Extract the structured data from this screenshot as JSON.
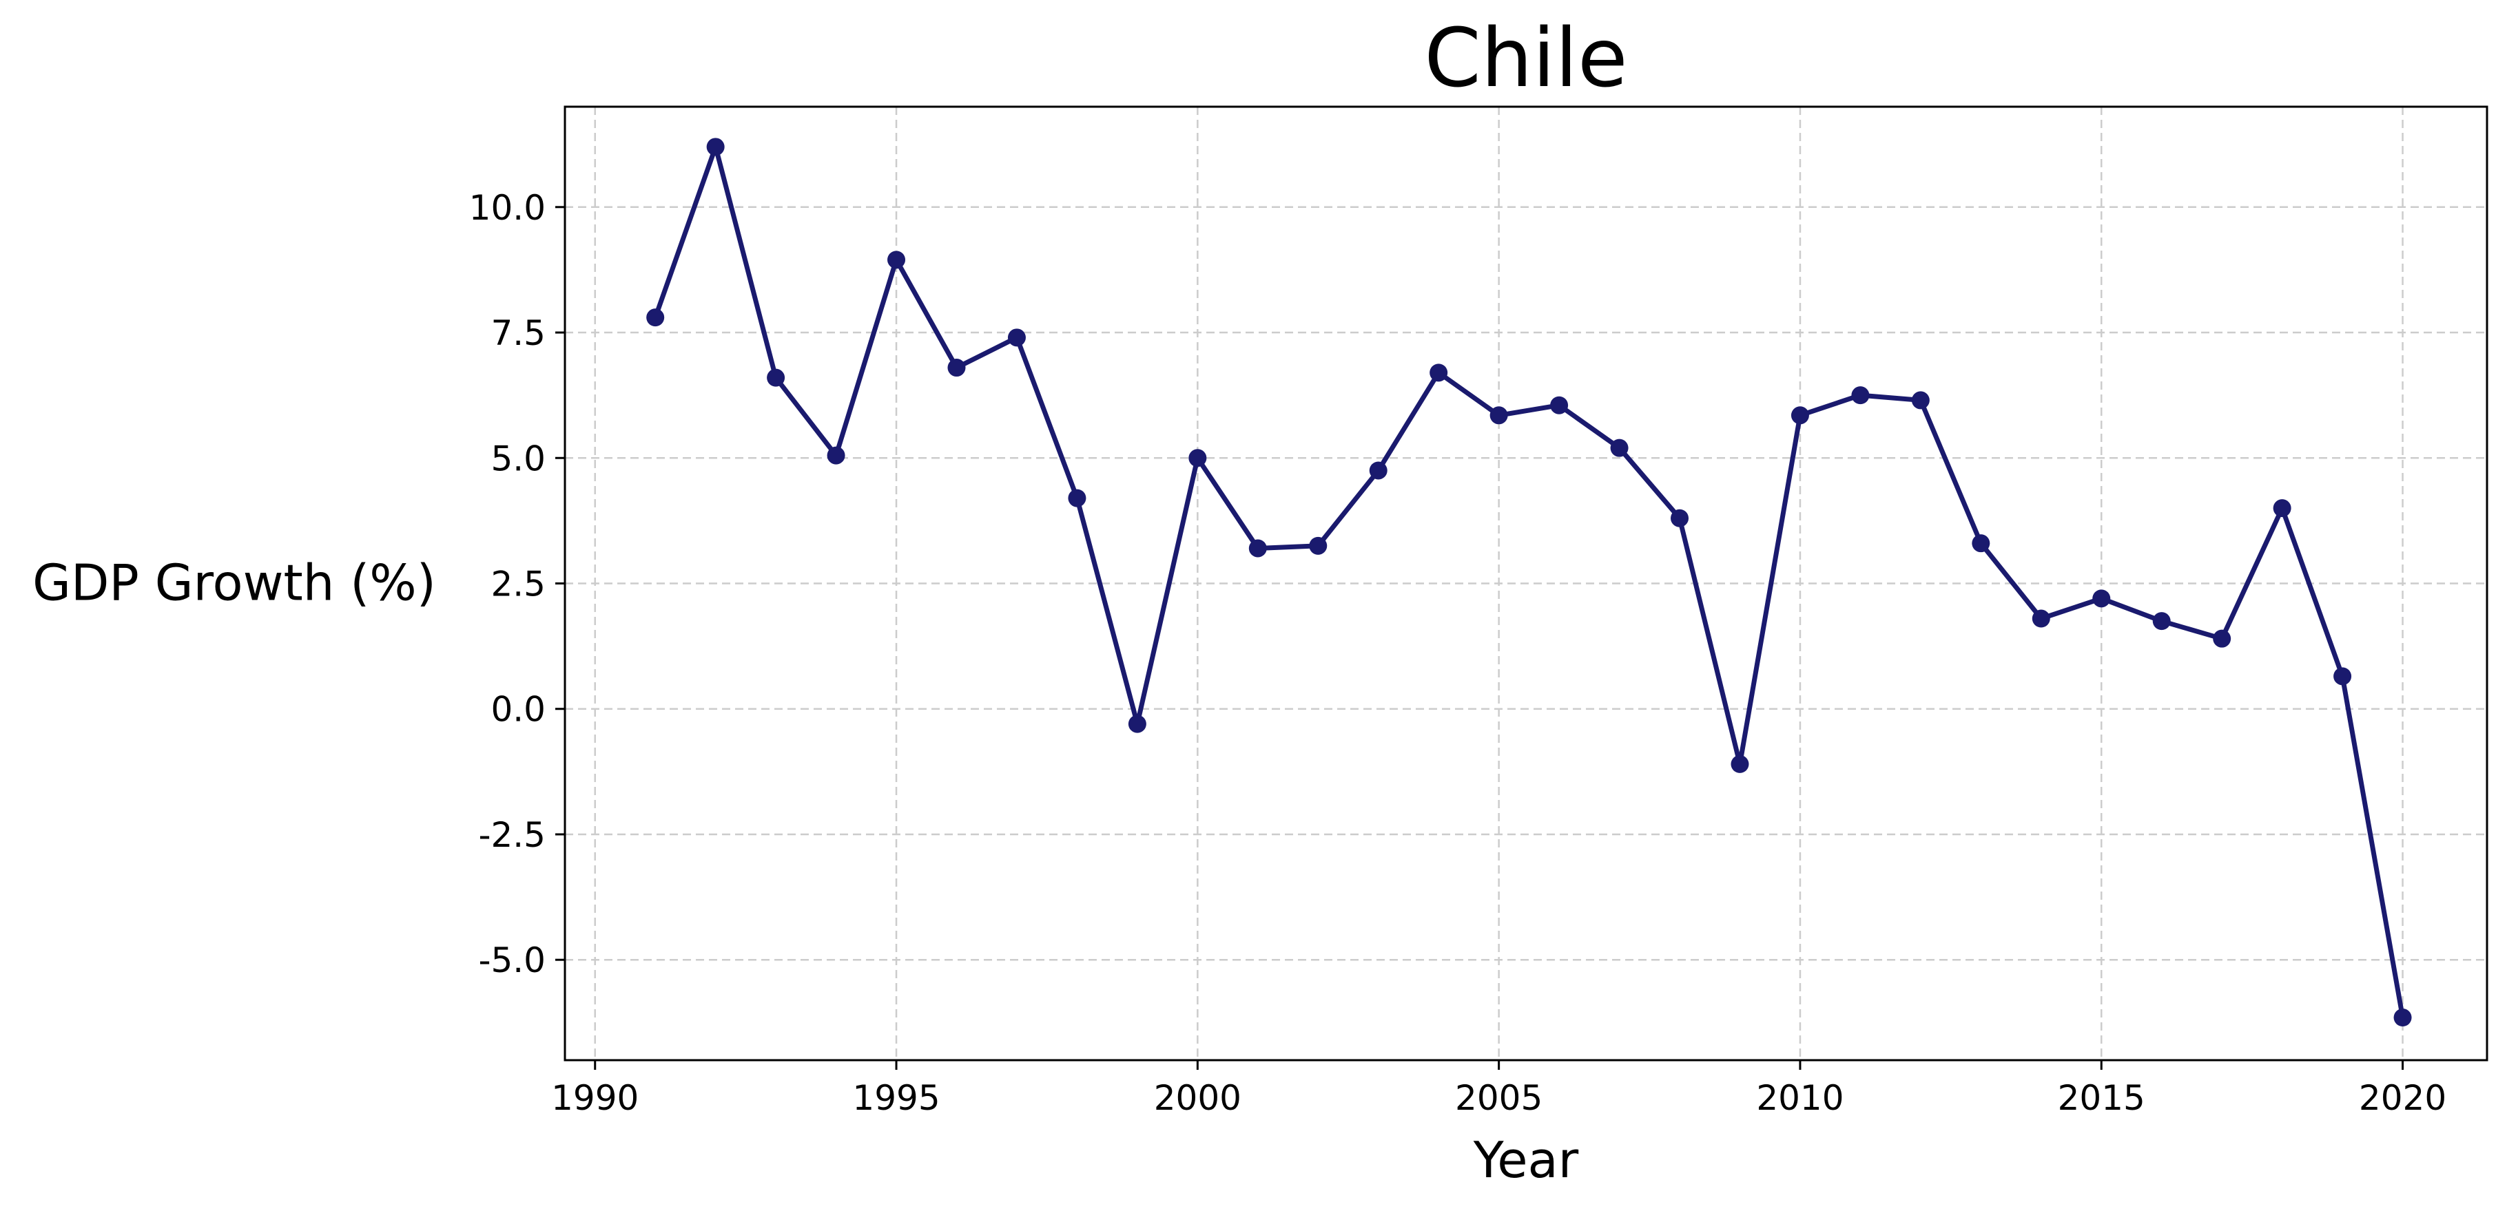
{
  "chart_data": {
    "type": "line",
    "title": "Chile",
    "xlabel": "Year",
    "ylabel": "GDP Growth (%)",
    "xlim": [
      1989.5,
      2021.4
    ],
    "ylim": [
      -7.0,
      12.0
    ],
    "xticks": [
      1990,
      1995,
      2000,
      2005,
      2010,
      2015,
      2020
    ],
    "yticks": [
      -5.0,
      -2.5,
      0.0,
      2.5,
      5.0,
      7.5,
      10.0
    ],
    "ytick_labels": [
      "-5.0",
      "-2.5",
      "0.0",
      "2.5",
      "5.0",
      "7.5",
      "10.0"
    ],
    "grid": true,
    "color": "#1a1a6e",
    "marker": "circle",
    "series": [
      {
        "x": [
          1991,
          1992,
          1993,
          1994,
          1995,
          1996,
          1997,
          1998,
          1999,
          2000,
          2001,
          2002,
          2003,
          2004,
          2005,
          2006,
          2007,
          2008,
          2009,
          2010,
          2011,
          2012,
          2013,
          2014,
          2015,
          2016,
          2017,
          2018,
          2019,
          2020
        ],
        "values": [
          7.8,
          11.2,
          6.6,
          5.05,
          8.95,
          6.8,
          7.4,
          4.2,
          -0.3,
          5.0,
          3.2,
          3.25,
          4.75,
          6.7,
          5.85,
          6.05,
          5.2,
          3.8,
          -1.1,
          5.85,
          6.25,
          6.15,
          3.3,
          1.8,
          2.2,
          1.75,
          1.4,
          4.0,
          0.65,
          -6.15
        ]
      }
    ]
  }
}
